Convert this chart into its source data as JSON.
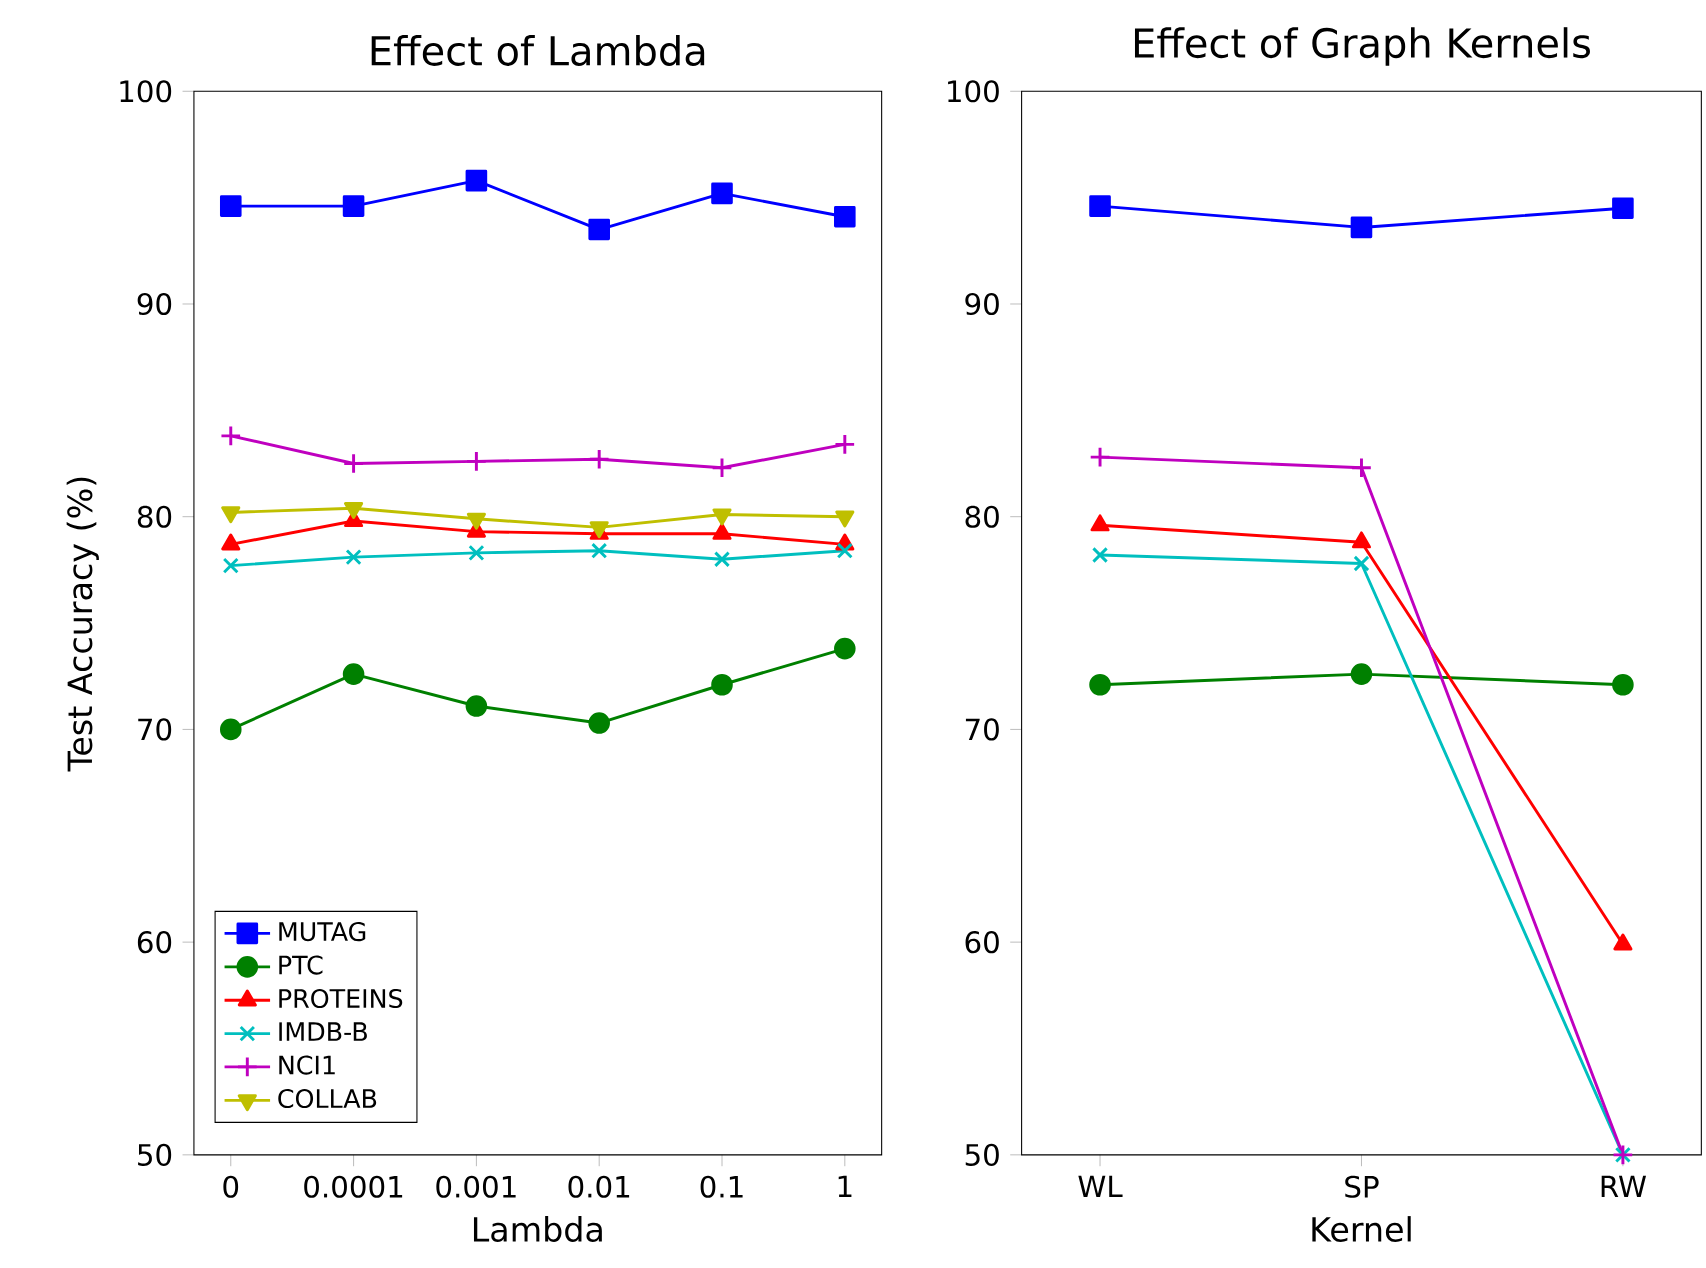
{
  "chart_data": [
    {
      "type": "line",
      "title": "Effect of Lambda",
      "xlabel": "Lambda",
      "ylabel": "Test Accuracy (%)",
      "categories": [
        "0",
        "0.0001",
        "0.001",
        "0.01",
        "0.1",
        "1"
      ],
      "ylim": [
        50,
        100
      ],
      "yticks": [
        50,
        60,
        70,
        80,
        90,
        100
      ],
      "legend": "bottom left",
      "grid": false,
      "line_style": "solid",
      "series": [
        {
          "name": "MUTAG",
          "color": "#0000ff",
          "marker": "square",
          "values": [
            94.6,
            94.6,
            95.8,
            93.5,
            95.2,
            94.1
          ]
        },
        {
          "name": "PTC",
          "color": "#008000",
          "marker": "circle",
          "values": [
            70.0,
            72.6,
            71.1,
            70.3,
            72.1,
            73.8
          ]
        },
        {
          "name": "PROTEINS",
          "color": "#ff0000",
          "marker": "triangle",
          "values": [
            78.7,
            79.8,
            79.3,
            79.2,
            79.2,
            78.7
          ]
        },
        {
          "name": "IMDB-B",
          "color": "#00bfbf",
          "marker": "cross",
          "values": [
            77.7,
            78.1,
            78.3,
            78.4,
            78.0,
            78.4
          ]
        },
        {
          "name": "NCI1",
          "color": "#bf00bf",
          "marker": "plus",
          "values": [
            83.8,
            82.5,
            82.6,
            82.7,
            82.3,
            83.4
          ]
        },
        {
          "name": "COLLAB",
          "color": "#bfbf00",
          "marker": "triangle_down",
          "values": [
            80.2,
            80.4,
            79.9,
            79.5,
            80.1,
            80.0
          ]
        }
      ]
    },
    {
      "type": "line",
      "title": "Effect of Graph Kernels",
      "xlabel": "Kernel",
      "categories": [
        "WL",
        "SP",
        "RW"
      ],
      "ylim": [
        50,
        100
      ],
      "yticks": [
        50,
        60,
        70,
        80,
        90,
        100
      ],
      "grid": false,
      "line_style": "solid",
      "series": [
        {
          "color": "#0000ff",
          "marker": "square",
          "values": [
            94.6,
            93.6,
            94.5
          ]
        },
        {
          "color": "#008000",
          "marker": "circle",
          "values": [
            72.1,
            72.6,
            72.1
          ]
        },
        {
          "color": "#ff0000",
          "marker": "triangle",
          "values": [
            79.6,
            78.8,
            59.9
          ]
        },
        {
          "color": "#00bfbf",
          "marker": "cross",
          "values": [
            78.2,
            77.8,
            50.0
          ]
        },
        {
          "color": "#bf00bf",
          "marker": "plus",
          "values": [
            82.8,
            82.3,
            50.0
          ]
        }
      ]
    }
  ]
}
